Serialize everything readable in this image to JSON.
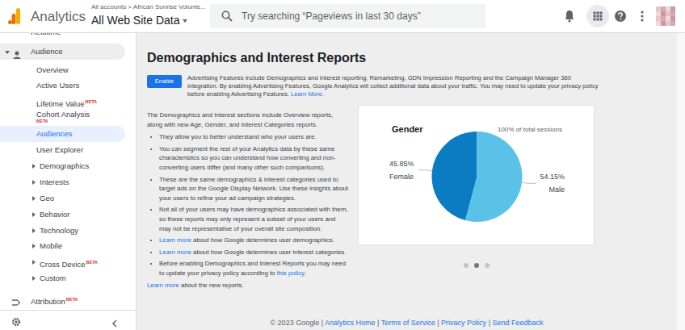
{
  "header": {
    "product": "Analytics",
    "breadcrumb": "All accounts > African Sunrise Volunte...",
    "view": "All Web Site Data",
    "search_placeholder": "Try searching “Pageviews in last 30 days”"
  },
  "sidebar": {
    "items": [
      {
        "label": "Realtime"
      },
      {
        "label": "Audience"
      },
      {
        "label": "Overview"
      },
      {
        "label": "Active Users"
      },
      {
        "label": "Lifetime Value",
        "badge": "BETA"
      },
      {
        "label": "Cohort Analysis",
        "badge": "BETA"
      },
      {
        "label": "Audiences",
        "selected": true
      },
      {
        "label": "User Explorer"
      },
      {
        "label": "Demographics"
      },
      {
        "label": "Interests"
      },
      {
        "label": "Geo"
      },
      {
        "label": "Behavior"
      },
      {
        "label": "Technology"
      },
      {
        "label": "Mobile"
      },
      {
        "label": "Cross Device",
        "badge": "BETA"
      },
      {
        "label": "Custom"
      },
      {
        "label": "Attribution",
        "badge": "BETA"
      }
    ]
  },
  "content": {
    "title": "Demographics and Interest Reports",
    "button": "Enable",
    "intro": [
      {
        "text": "Advertising Features include Demographics and Interest reporting, Remarketing, GDN Impression Reporting and the Campaign Manager 360 integration. By enabling Advertising Features, Google Analytics will collect additional data about your traffic. You may need to update your privacy policy before enabling Advertising Features. "
      },
      {
        "text": "Learn More.",
        "link": true
      }
    ],
    "lead": "The Demographics and Interest sections include Overview reports, along with new Age, Gender, and Interest Categories reports.",
    "bullets": [
      [
        {
          "text": "They allow you to better understand who your users are."
        }
      ],
      [
        {
          "text": "You can segment the rest of your Analytics data by these same characteristics so you can understand how converting and non-converting users differ (and many other such comparisons)."
        }
      ],
      [
        {
          "text": "These are the same demographics & interest categories used to target ads on the Google Display Network. Use these insights about your users to refine your ad campaign strategies."
        }
      ],
      [
        {
          "text": "Not all of your users may have demographics associated with them, so these reports may only represent a subset of your users and may not be representative of your overall site composition."
        }
      ],
      [
        {
          "text": "Learn more",
          "link": true
        },
        {
          "text": " about how Google determines user demographics."
        }
      ],
      [
        {
          "text": "Learn more",
          "link": true
        },
        {
          "text": " about how Google determines user interest categories."
        }
      ],
      [
        {
          "text": "Before enabling Demographics and Interest Reports you may need to update your privacy policy according to "
        },
        {
          "text": "this policy",
          "link": true
        },
        {
          "text": "."
        }
      ]
    ],
    "closing": [
      {
        "text": "Learn more",
        "link": true
      },
      {
        "text": " about the new reports."
      }
    ]
  },
  "chart_data": {
    "type": "pie",
    "title": "Gender",
    "subtitle": "100% of total sessions",
    "categories": [
      "Female",
      "Male"
    ],
    "values": [
      45.85,
      54.15
    ],
    "value_labels": [
      "45.85%",
      "54.15%"
    ],
    "colors": [
      "#0b7cc2",
      "#5bc2e7"
    ],
    "data_labels": true
  },
  "footer": [
    {
      "text": "© 2023 Google | "
    },
    {
      "text": "Analytics Home",
      "link": true
    },
    {
      "text": " | "
    },
    {
      "text": "Terms of Service",
      "link": true
    },
    {
      "text": " | "
    },
    {
      "text": "Privacy Policy",
      "link": true
    },
    {
      "text": " | "
    },
    {
      "text": "Send Feedback",
      "link": true
    }
  ]
}
